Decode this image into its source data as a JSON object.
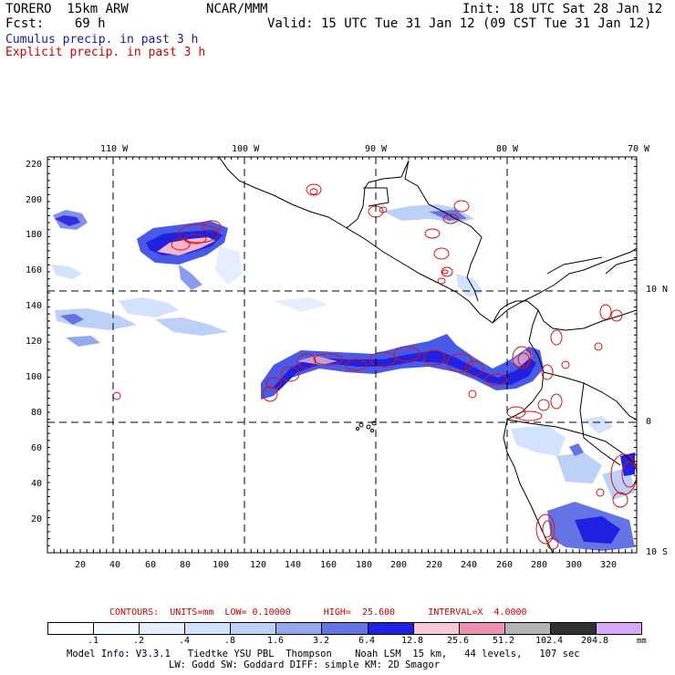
{
  "header": {
    "model": "TORERO  15km ARW",
    "org": "NCAR/MMM",
    "init": "Init: 18 UTC Sat 28 Jan 12",
    "fcst": "Fcst:    69 h",
    "valid": "Valid: 15 UTC Tue 31 Jan 12 (09 CST Tue 31 Jan 12)",
    "cumulus": "Cumulus precip. in past 3 h",
    "explicit": "Explicit precip. in past 3 h"
  },
  "colors": {
    "cumulus_label": "#1a1aa0",
    "explicit_label": "#cc0000",
    "coast": "#000000",
    "contour": "#d21414"
  },
  "lon_labels": [
    "110 W",
    "100 W",
    "90 W",
    "80 W",
    "70 W"
  ],
  "lat_labels": [
    "10 N",
    "0",
    "10 S"
  ],
  "y_grid": [
    "220",
    "200",
    "180",
    "160",
    "140",
    "120",
    "100",
    "80",
    "60",
    "40",
    "20"
  ],
  "x_grid": [
    "20",
    "40",
    "60",
    "80",
    "100",
    "120",
    "140",
    "160",
    "180",
    "200",
    "220",
    "240",
    "260",
    "280",
    "300",
    "320"
  ],
  "contour_info": "CONTOURS:  UNITS=mm  LOW= 0.10000      HIGH=  25.600      INTERVAL=X  4.0000",
  "colorbar": {
    "labels": [
      ".1",
      ".2",
      ".4",
      ".8",
      "1.6",
      "3.2",
      "6.4",
      "12.8",
      "25.6",
      "51.2",
      "102.4",
      "204.8"
    ],
    "unit": "mm",
    "colors": [
      "#ffffff",
      "#f4f8ff",
      "#e4eeff",
      "#d2e2ff",
      "#bcd0f8",
      "#94a8ee",
      "#6474e4",
      "#2020e0",
      "#f8c8d4",
      "#f090b4",
      "#b4b4b4",
      "#303030",
      "#d8a8f8"
    ]
  },
  "footer": {
    "line1": "Model Info: V3.3.1   Tiedtke YSU PBL  Thompson    Noah LSM  15 km,   44 levels,   107 sec",
    "line2": "LW: Godd SW: Goddard DIFF: simple KM: 2D Smagor"
  }
}
